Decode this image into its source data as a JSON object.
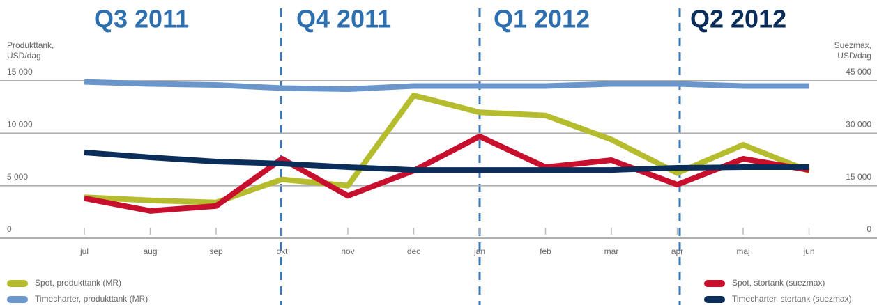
{
  "chart_data": {
    "type": "line",
    "annotations": [
      "Q3 2011",
      "Q4 2011",
      "Q1 2012",
      "Q2 2012"
    ],
    "y_label": [
      "Produkttank,",
      "USD/dag"
    ],
    "y2_label": [
      "Suezmax,",
      "USD/dag"
    ],
    "categories": [
      "jul",
      "aug",
      "sep",
      "okt",
      "nov",
      "dec",
      "jan",
      "feb",
      "mar",
      "apr",
      "maj",
      "jun"
    ],
    "ylim": [
      0,
      15000
    ],
    "yticks": [
      0,
      {
        "value": 5000,
        "label": "5 000"
      },
      {
        "value": 10000,
        "label": "10 000"
      },
      {
        "value": 15000,
        "label": "15 000"
      }
    ],
    "y2lim": [
      0,
      45000
    ],
    "y2ticks": [
      0,
      {
        "value": 15000,
        "label": "15 000"
      },
      {
        "value": 30000,
        "label": "30 000"
      },
      {
        "value": 45000,
        "label": "45 000"
      }
    ],
    "grid": true,
    "series": [
      {
        "name": "Spot, produkttank (MR)",
        "color": "#b5bd2e",
        "values": [
          3900,
          3600,
          3400,
          5600,
          5000,
          13600,
          12000,
          11700,
          9400,
          6200,
          8900,
          6400
        ]
      },
      {
        "name": "Timecharter, produkttank (MR)",
        "color": "#6a96cc",
        "values": [
          14900,
          14700,
          14600,
          14300,
          14200,
          14500,
          14500,
          14500,
          14700,
          14700,
          14500,
          14500
        ]
      },
      {
        "name": "Spot, stortank (suezmax)",
        "color": "#c8102e",
        "axis": "y2",
        "values": [
          11400,
          7800,
          9200,
          22700,
          12100,
          19300,
          29100,
          20300,
          22300,
          15300,
          22700,
          19500
        ]
      },
      {
        "name": "Timecharter, stortank (suezmax)",
        "color": "#0a2d5a",
        "axis": "y2",
        "values": [
          24500,
          23100,
          21900,
          21300,
          20300,
          19500,
          19500,
          19500,
          19500,
          20100,
          20300,
          20300
        ]
      }
    ]
  }
}
